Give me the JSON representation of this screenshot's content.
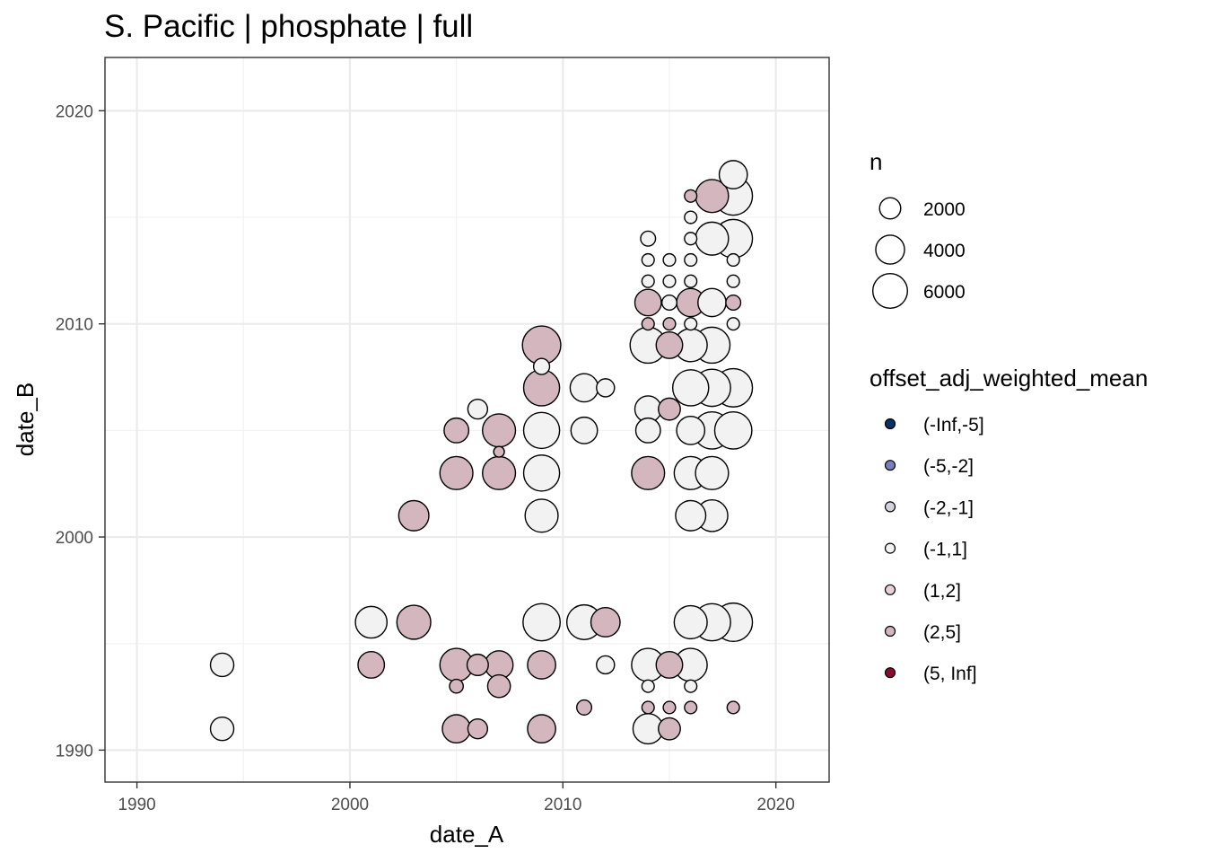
{
  "chart_data": {
    "type": "scatter",
    "title": "S. Pacific | phosphate | full",
    "xlabel": "date_A",
    "ylabel": "date_B",
    "xlim": [
      1988.5,
      2022.5
    ],
    "ylim": [
      1988.5,
      2022.5
    ],
    "x_ticks": [
      1990,
      2000,
      2010,
      2020
    ],
    "y_ticks": [
      1990,
      2000,
      2010,
      2020
    ],
    "x_tick_labels": [
      "1990",
      "2000",
      "2010",
      "2020"
    ],
    "y_tick_labels": [
      "1990",
      "2000",
      "2010",
      "2020"
    ],
    "grid": true,
    "legend_position": "right",
    "size_legend": {
      "title": "n",
      "values": [
        2000,
        4000,
        6000
      ],
      "labels": [
        "2000",
        "4000",
        "6000"
      ]
    },
    "color_legend": {
      "title": "offset_adj_weighted_mean",
      "categories": [
        "(-Inf,-5]",
        "(-5,-2]",
        "(-2,-1]",
        "(-1,1]",
        "(1,2]",
        "(2,5]",
        "(5, Inf]"
      ],
      "colors": [
        "#08306b",
        "#7b7fbf",
        "#d3d3e0",
        "#f2f2f2",
        "#e8d2d7",
        "#d4b6be",
        "#8b0a2f"
      ]
    },
    "points": [
      {
        "x": 1994,
        "y": 1994,
        "n": 1500,
        "class": "(-1,1]"
      },
      {
        "x": 1994,
        "y": 1991,
        "n": 1500,
        "class": "(-1,1]"
      },
      {
        "x": 2001,
        "y": 1996,
        "n": 3000,
        "class": "(-1,1]"
      },
      {
        "x": 2001,
        "y": 1994,
        "n": 2000,
        "class": "(2,5]"
      },
      {
        "x": 2003,
        "y": 2001,
        "n": 2700,
        "class": "(2,5]"
      },
      {
        "x": 2003,
        "y": 1996,
        "n": 3500,
        "class": "(2,5]"
      },
      {
        "x": 2005,
        "y": 2005,
        "n": 1700,
        "class": "(2,5]"
      },
      {
        "x": 2005,
        "y": 2003,
        "n": 3300,
        "class": "(2,5]"
      },
      {
        "x": 2005,
        "y": 1994,
        "n": 3300,
        "class": "(2,5]"
      },
      {
        "x": 2005,
        "y": 1993,
        "n": 400,
        "class": "(2,5]"
      },
      {
        "x": 2005,
        "y": 1991,
        "n": 2300,
        "class": "(2,5]"
      },
      {
        "x": 2006,
        "y": 2006,
        "n": 1000,
        "class": "(-1,1]"
      },
      {
        "x": 2006,
        "y": 1994,
        "n": 1200,
        "class": "(2,5]"
      },
      {
        "x": 2006,
        "y": 1991,
        "n": 1000,
        "class": "(2,5]"
      },
      {
        "x": 2007,
        "y": 2005,
        "n": 3300,
        "class": "(2,5]"
      },
      {
        "x": 2007,
        "y": 2004,
        "n": 200,
        "class": "(2,5]"
      },
      {
        "x": 2007,
        "y": 2003,
        "n": 3300,
        "class": "(2,5]"
      },
      {
        "x": 2007,
        "y": 1994,
        "n": 2300,
        "class": "(2,5]"
      },
      {
        "x": 2007,
        "y": 1993,
        "n": 1400,
        "class": "(2,5]"
      },
      {
        "x": 2009,
        "y": 2009,
        "n": 4600,
        "class": "(2,5]"
      },
      {
        "x": 2009,
        "y": 2008,
        "n": 600,
        "class": "(-1,1]"
      },
      {
        "x": 2009,
        "y": 2007,
        "n": 4000,
        "class": "(2,5]"
      },
      {
        "x": 2009,
        "y": 2005,
        "n": 4000,
        "class": "(-1,1]"
      },
      {
        "x": 2009,
        "y": 2003,
        "n": 4000,
        "class": "(-1,1]"
      },
      {
        "x": 2009,
        "y": 2001,
        "n": 3300,
        "class": "(-1,1]"
      },
      {
        "x": 2009,
        "y": 1996,
        "n": 4300,
        "class": "(-1,1]"
      },
      {
        "x": 2009,
        "y": 1994,
        "n": 2300,
        "class": "(2,5]"
      },
      {
        "x": 2009,
        "y": 1991,
        "n": 2300,
        "class": "(2,5]"
      },
      {
        "x": 2011,
        "y": 2007,
        "n": 2300,
        "class": "(-1,1]"
      },
      {
        "x": 2011,
        "y": 2005,
        "n": 2000,
        "class": "(-1,1]"
      },
      {
        "x": 2011,
        "y": 1996,
        "n": 3700,
        "class": "(-1,1]"
      },
      {
        "x": 2011,
        "y": 1992,
        "n": 500,
        "class": "(2,5]"
      },
      {
        "x": 2012,
        "y": 2007,
        "n": 800,
        "class": "(-1,1]"
      },
      {
        "x": 2012,
        "y": 1996,
        "n": 2500,
        "class": "(2,5]"
      },
      {
        "x": 2012,
        "y": 1994,
        "n": 800,
        "class": "(-1,1]"
      },
      {
        "x": 2014,
        "y": 2014,
        "n": 500,
        "class": "(-1,1]"
      },
      {
        "x": 2014,
        "y": 2013,
        "n": 300,
        "class": "(-1,1]"
      },
      {
        "x": 2014,
        "y": 2012,
        "n": 300,
        "class": "(-1,1]"
      },
      {
        "x": 2014,
        "y": 2011,
        "n": 2000,
        "class": "(2,5]"
      },
      {
        "x": 2014,
        "y": 2010,
        "n": 300,
        "class": "(2,5]"
      },
      {
        "x": 2014,
        "y": 2009,
        "n": 4000,
        "class": "(-1,1]"
      },
      {
        "x": 2014,
        "y": 2006,
        "n": 2000,
        "class": "(-1,1]"
      },
      {
        "x": 2014,
        "y": 2005,
        "n": 1700,
        "class": "(-1,1]"
      },
      {
        "x": 2014,
        "y": 2003,
        "n": 3300,
        "class": "(2,5]"
      },
      {
        "x": 2014,
        "y": 1994,
        "n": 3300,
        "class": "(-1,1]"
      },
      {
        "x": 2014,
        "y": 1993,
        "n": 300,
        "class": "(-1,1]"
      },
      {
        "x": 2014,
        "y": 1992,
        "n": 300,
        "class": "(2,5]"
      },
      {
        "x": 2014,
        "y": 1991,
        "n": 2700,
        "class": "(-1,1]"
      },
      {
        "x": 2015,
        "y": 2013,
        "n": 300,
        "class": "(-1,1]"
      },
      {
        "x": 2015,
        "y": 2012,
        "n": 300,
        "class": "(-1,1]"
      },
      {
        "x": 2015,
        "y": 2011,
        "n": 500,
        "class": "(-1,1]"
      },
      {
        "x": 2015,
        "y": 2010,
        "n": 300,
        "class": "(2,5]"
      },
      {
        "x": 2015,
        "y": 2009,
        "n": 2000,
        "class": "(2,5]"
      },
      {
        "x": 2015,
        "y": 2006,
        "n": 1300,
        "class": "(2,5]"
      },
      {
        "x": 2015,
        "y": 1994,
        "n": 2000,
        "class": "(2,5]"
      },
      {
        "x": 2015,
        "y": 1992,
        "n": 300,
        "class": "(2,5]"
      },
      {
        "x": 2015,
        "y": 1991,
        "n": 1300,
        "class": "(2,5]"
      },
      {
        "x": 2016,
        "y": 2016,
        "n": 300,
        "class": "(2,5]"
      },
      {
        "x": 2016,
        "y": 2015,
        "n": 300,
        "class": "(-1,1]"
      },
      {
        "x": 2016,
        "y": 2014,
        "n": 300,
        "class": "(-1,1]"
      },
      {
        "x": 2016,
        "y": 2013,
        "n": 300,
        "class": "(-1,1]"
      },
      {
        "x": 2016,
        "y": 2012,
        "n": 300,
        "class": "(-1,1]"
      },
      {
        "x": 2016,
        "y": 2011,
        "n": 2300,
        "class": "(2,5]"
      },
      {
        "x": 2016,
        "y": 2010,
        "n": 300,
        "class": "(-1,1]"
      },
      {
        "x": 2016,
        "y": 2009,
        "n": 3300,
        "class": "(-1,1]"
      },
      {
        "x": 2016,
        "y": 2007,
        "n": 4000,
        "class": "(-1,1]"
      },
      {
        "x": 2016,
        "y": 2005,
        "n": 2300,
        "class": "(-1,1]"
      },
      {
        "x": 2016,
        "y": 2003,
        "n": 3300,
        "class": "(-1,1]"
      },
      {
        "x": 2016,
        "y": 2001,
        "n": 2700,
        "class": "(-1,1]"
      },
      {
        "x": 2016,
        "y": 1996,
        "n": 3300,
        "class": "(-1,1]"
      },
      {
        "x": 2016,
        "y": 1994,
        "n": 3300,
        "class": "(-1,1]"
      },
      {
        "x": 2016,
        "y": 1993,
        "n": 300,
        "class": "(-1,1]"
      },
      {
        "x": 2016,
        "y": 1992,
        "n": 300,
        "class": "(2,5]"
      },
      {
        "x": 2017,
        "y": 2016,
        "n": 3300,
        "class": "(2,5]"
      },
      {
        "x": 2017,
        "y": 2014,
        "n": 3300,
        "class": "(-1,1]"
      },
      {
        "x": 2017,
        "y": 2011,
        "n": 2300,
        "class": "(-1,1]"
      },
      {
        "x": 2017,
        "y": 2009,
        "n": 4000,
        "class": "(-1,1]"
      },
      {
        "x": 2017,
        "y": 2007,
        "n": 4300,
        "class": "(-1,1]"
      },
      {
        "x": 2017,
        "y": 2005,
        "n": 4300,
        "class": "(-1,1]"
      },
      {
        "x": 2017,
        "y": 2003,
        "n": 3300,
        "class": "(-1,1]"
      },
      {
        "x": 2017,
        "y": 2001,
        "n": 3000,
        "class": "(-1,1]"
      },
      {
        "x": 2017,
        "y": 1996,
        "n": 4300,
        "class": "(-1,1]"
      },
      {
        "x": 2018,
        "y": 2017,
        "n": 2300,
        "class": "(-1,1]"
      },
      {
        "x": 2018,
        "y": 2016,
        "n": 4600,
        "class": "(-1,1]"
      },
      {
        "x": 2018,
        "y": 2014,
        "n": 4600,
        "class": "(-1,1]"
      },
      {
        "x": 2018,
        "y": 2013,
        "n": 300,
        "class": "(-1,1]"
      },
      {
        "x": 2018,
        "y": 2012,
        "n": 300,
        "class": "(-1,1]"
      },
      {
        "x": 2018,
        "y": 2011,
        "n": 500,
        "class": "(2,5]"
      },
      {
        "x": 2018,
        "y": 2010,
        "n": 300,
        "class": "(-1,1]"
      },
      {
        "x": 2018,
        "y": 2007,
        "n": 4600,
        "class": "(-1,1]"
      },
      {
        "x": 2018,
        "y": 2005,
        "n": 4300,
        "class": "(-1,1]"
      },
      {
        "x": 2018,
        "y": 1996,
        "n": 4600,
        "class": "(-1,1]"
      },
      {
        "x": 2018,
        "y": 1992,
        "n": 300,
        "class": "(2,5]"
      }
    ]
  }
}
